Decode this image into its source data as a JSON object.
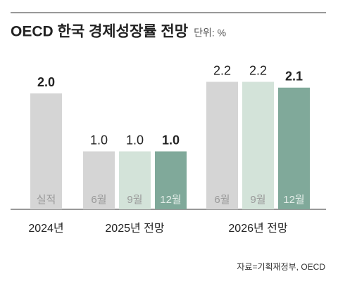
{
  "chart_data": {
    "type": "bar",
    "title": "OECD 한국 경제성장률 전망",
    "subtitle": "단위: %",
    "source": "자료=기획재정부, OECD",
    "groups": [
      {
        "label": "2024년",
        "categories": [
          "실적"
        ],
        "values": [
          2.0
        ],
        "value_labels": [
          "2.0"
        ],
        "colors": [
          "#d5d5d5"
        ]
      },
      {
        "label": "2025년 전망",
        "categories": [
          "6월",
          "9월",
          "12월"
        ],
        "values": [
          1.0,
          1.0,
          1.0
        ],
        "value_labels": [
          "1.0",
          "1.0",
          "1.0"
        ],
        "colors": [
          "#d5d5d5",
          "#d3e3d9",
          "#80a99a"
        ]
      },
      {
        "label": "2026년 전망",
        "categories": [
          "6월",
          "9월",
          "12월"
        ],
        "values": [
          2.2,
          2.2,
          2.1
        ],
        "value_labels": [
          "2.2",
          "2.2",
          "2.1"
        ],
        "colors": [
          "#d5d5d5",
          "#d3e3d9",
          "#80a99a"
        ]
      }
    ]
  }
}
